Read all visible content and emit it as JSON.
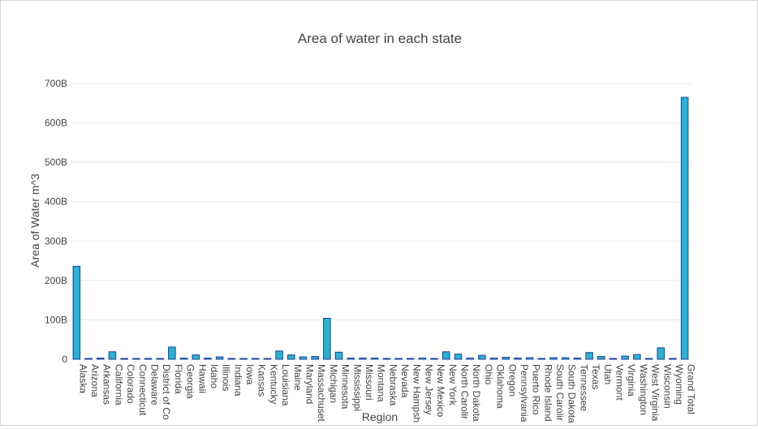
{
  "chart_data": {
    "type": "bar",
    "title": "Area of water in each state",
    "xlabel": "Region",
    "ylabel": "Area of Water m^3",
    "ylim": [
      0,
      700
    ],
    "yticks": [
      0,
      100,
      200,
      300,
      400,
      500,
      600,
      700
    ],
    "ytick_labels": [
      "0",
      "100B",
      "200B",
      "300B",
      "400B",
      "500B",
      "600B",
      "700B"
    ],
    "grid": true,
    "categories": [
      "Alaska",
      "Arizona",
      "Arkansas",
      "California",
      "Colorado",
      "Connecticut",
      "Delaware",
      "District of Co",
      "Florida",
      "Georgia",
      "Hawaii",
      "Idaho",
      "Illinois",
      "Indiana",
      "Iowa",
      "Kansas",
      "Kentucky",
      "Louisiana",
      "Maine",
      "Maryland",
      "Massachuset",
      "Michigan",
      "Minnesota",
      "Mississippi",
      "Missouri",
      "Montana",
      "Nebraska",
      "Nevada",
      "New Hampsh",
      "New Jersey",
      "New Mexico",
      "New York",
      "North Carolir",
      "North Dakota",
      "Ohio",
      "Oklahoma",
      "Oregon",
      "Pennsylvania",
      "Puerto Rico",
      "Rhode Island",
      "South Carolir",
      "South Dakota",
      "Tennessee",
      "Texas",
      "Utah",
      "Vermont",
      "Virginia",
      "Washington",
      "West Virginia",
      "Wisconsin",
      "Wyoming",
      "Grand Total"
    ],
    "values": [
      236,
      1,
      3,
      19,
      1,
      1,
      1,
      1,
      31,
      3,
      11,
      3,
      6,
      1,
      1,
      1,
      1,
      21,
      11,
      6,
      7,
      104,
      18,
      3,
      3,
      3,
      1,
      1,
      1,
      3,
      1,
      19,
      13,
      3,
      10,
      3,
      5,
      3,
      4,
      1,
      4,
      4,
      3,
      17,
      7,
      1,
      8,
      12,
      1,
      29,
      1,
      665
    ],
    "colors": {
      "fill": "#29b3cf",
      "stroke": "#1f3f9f",
      "grid": "#e8e8e8"
    }
  }
}
